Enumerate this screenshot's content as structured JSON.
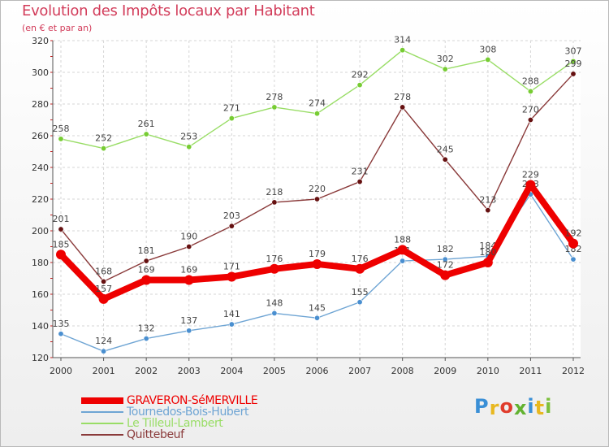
{
  "title": "Evolution des Impôts locaux par Habitant",
  "subtitle": "(en € et par an)",
  "logo": {
    "text": "Proxiti",
    "colors": [
      "#3a8fd6",
      "#e8b820",
      "#e03c2c",
      "#62b230",
      "#3a8fd6",
      "#e8b820",
      "#7cc03c"
    ]
  },
  "chart_data": {
    "type": "line",
    "x": [
      "2000",
      "2001",
      "2002",
      "2003",
      "2004",
      "2005",
      "2006",
      "2007",
      "2008",
      "2009",
      "2010",
      "2011",
      "2012"
    ],
    "ylim": [
      120,
      320
    ],
    "yticks": [
      120,
      140,
      160,
      180,
      200,
      220,
      240,
      260,
      280,
      300,
      320
    ],
    "grid": true,
    "legend_position": "bottom-left",
    "series": [
      {
        "name": "GRAVERON-SéMERVILLE",
        "color": "#ee0000",
        "emphasis": true,
        "values": [
          185,
          157,
          169,
          169,
          171,
          176,
          179,
          176,
          188,
          172,
          180,
          229,
          192
        ]
      },
      {
        "name": "Tournedos-Bois-Hubert",
        "color": "#6fa5d4",
        "point_color": "#4a8fd0",
        "values": [
          135,
          124,
          132,
          137,
          141,
          148,
          145,
          155,
          181,
          182,
          184,
          223,
          182
        ]
      },
      {
        "name": "Le Tilleul-Lambert",
        "color": "#99dd66",
        "point_color": "#77cc33",
        "values": [
          258,
          252,
          261,
          253,
          271,
          278,
          274,
          292,
          314,
          302,
          308,
          288,
          307
        ]
      },
      {
        "name": "Quittebeuf",
        "color": "#8a3a3a",
        "point_color": "#661111",
        "values": [
          201,
          168,
          181,
          190,
          203,
          218,
          220,
          231,
          278,
          245,
          213,
          270,
          299
        ]
      }
    ]
  }
}
